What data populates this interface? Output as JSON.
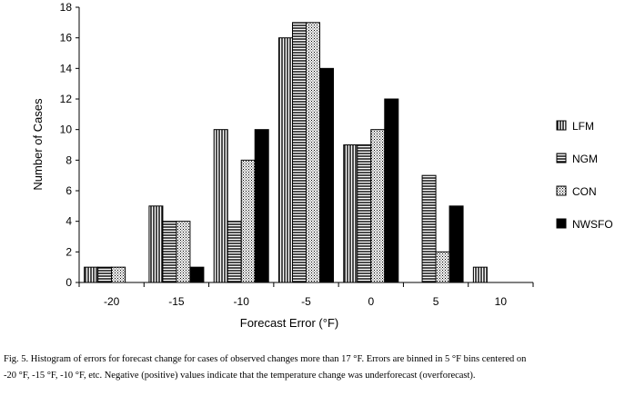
{
  "chart_data": {
    "type": "bar",
    "categories": [
      "-20",
      "-15",
      "-10",
      "-5",
      "0",
      "5",
      "10"
    ],
    "series": [
      {
        "name": "LFM",
        "values": [
          1,
          5,
          10,
          16,
          9,
          0,
          1
        ],
        "pattern": "vertical-lines"
      },
      {
        "name": "NGM",
        "values": [
          1,
          4,
          4,
          17,
          9,
          7,
          0
        ],
        "pattern": "horizontal-lines"
      },
      {
        "name": "CON",
        "values": [
          1,
          4,
          8,
          17,
          10,
          2,
          0
        ],
        "pattern": "dots"
      },
      {
        "name": "NWSFO",
        "values": [
          0,
          1,
          10,
          14,
          12,
          5,
          0
        ],
        "pattern": "solid-black"
      }
    ],
    "title": "",
    "xlabel": "Forecast Error (°F)",
    "ylabel": "Number of Cases",
    "ylim": [
      0,
      18
    ],
    "yticks": [
      0,
      2,
      4,
      6,
      8,
      10,
      12,
      14,
      16,
      18
    ],
    "grid": false,
    "legend_position": "right"
  },
  "caption": {
    "line1": "Fig. 5.  Histogram of errors for forecast change for cases of observed changes more than 17 °F.  Errors are binned in 5 °F bins centered on",
    "line2": "-20 °F, -15 °F, -10 °F, etc.  Negative (positive) values indicate that the temperature change was underforecast (overforecast)."
  }
}
